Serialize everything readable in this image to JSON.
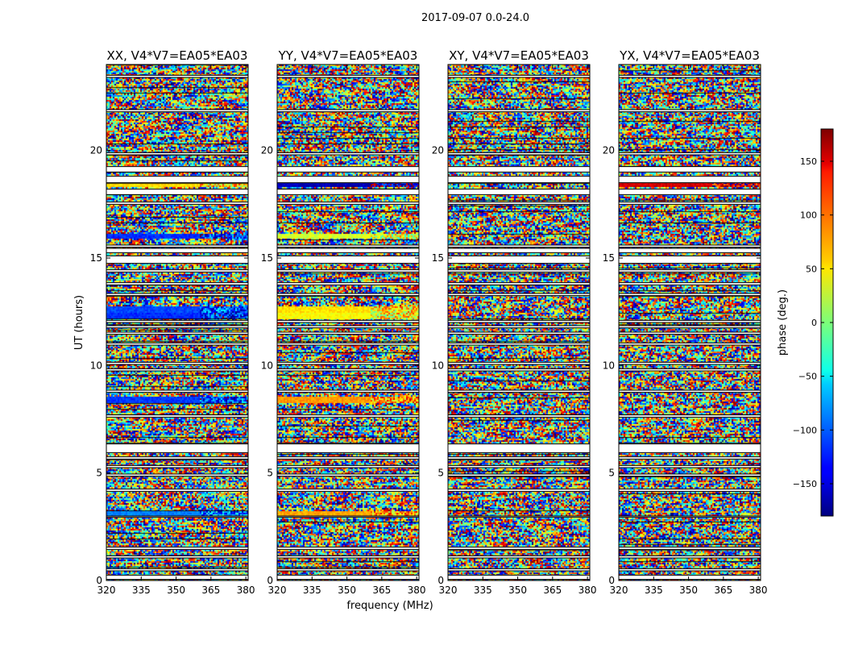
{
  "chart_data": {
    "type": "heatmap",
    "suptitle": "2017-09-07 0.0-24.0",
    "xlabel": "frequency (MHz)",
    "ylabel": "UT (hours)",
    "xlim": [
      320,
      381
    ],
    "ylim": [
      0,
      24
    ],
    "xticks": [
      320,
      335,
      350,
      365,
      380
    ],
    "yticks": [
      0,
      5,
      10,
      15,
      20
    ],
    "colorbar": {
      "label": "phase (deg.)",
      "range": [
        -180,
        180
      ],
      "ticks": [
        150,
        100,
        50,
        0,
        -50,
        -100,
        -150
      ],
      "tick_labels": [
        "150",
        "100",
        "50",
        "0",
        "−50",
        "−100",
        "−150"
      ],
      "colormap": "jet"
    },
    "panels": [
      {
        "title": "XX, V4*V7=EA05*EA03",
        "coherent_rows": [
          {
            "ut": 18.4,
            "phase": 55
          },
          {
            "ut": 16.0,
            "phase": -120
          },
          {
            "ut": 12.6,
            "phase": -110
          },
          {
            "ut": 12.3,
            "phase": -120
          },
          {
            "ut": 8.4,
            "phase": -115
          },
          {
            "ut": 3.1,
            "phase": -90
          }
        ]
      },
      {
        "title": "YY, V4*V7=EA05*EA03",
        "coherent_rows": [
          {
            "ut": 18.4,
            "phase": -160
          },
          {
            "ut": 16.0,
            "phase": 30
          },
          {
            "ut": 12.6,
            "phase": 55
          },
          {
            "ut": 12.3,
            "phase": 45
          },
          {
            "ut": 8.4,
            "phase": 80
          },
          {
            "ut": 3.1,
            "phase": 75
          }
        ]
      },
      {
        "title": "XY, V4*V7=EA05*EA03",
        "coherent_rows": []
      },
      {
        "title": "YX, V4*V7=EA05*EA03",
        "coherent_rows": [
          {
            "ut": 18.4,
            "phase": 150
          }
        ]
      }
    ],
    "flagged_ut_ranges": [
      [
        0.05,
        0.25
      ],
      [
        0.45,
        0.55
      ],
      [
        1.05,
        1.15
      ],
      [
        1.45,
        1.55
      ],
      [
        2.95,
        3.0
      ],
      [
        4.15,
        4.25
      ],
      [
        4.85,
        4.95
      ],
      [
        5.25,
        5.35
      ],
      [
        5.65,
        5.75
      ],
      [
        5.95,
        6.35
      ],
      [
        7.6,
        7.7
      ],
      [
        8.75,
        8.85
      ],
      [
        9.75,
        9.85
      ],
      [
        10.05,
        10.15
      ],
      [
        10.95,
        11.05
      ],
      [
        11.45,
        11.55
      ],
      [
        11.75,
        11.85
      ],
      [
        12.0,
        12.1
      ],
      [
        13.25,
        13.35
      ],
      [
        13.75,
        13.85
      ],
      [
        14.35,
        14.45
      ],
      [
        14.75,
        15.1
      ],
      [
        15.25,
        15.45
      ],
      [
        15.5,
        15.6
      ],
      [
        17.5,
        17.6
      ],
      [
        17.95,
        18.2
      ],
      [
        18.5,
        18.8
      ],
      [
        19.0,
        19.25
      ],
      [
        19.8,
        19.9
      ],
      [
        21.8,
        21.9
      ],
      [
        23.4,
        23.5
      ]
    ]
  }
}
